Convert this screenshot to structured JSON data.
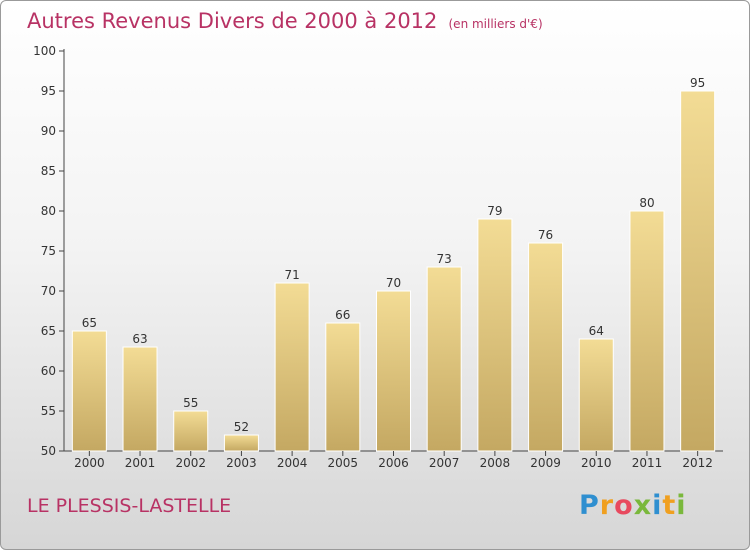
{
  "header": {
    "title": "Autres Revenus Divers de 2000 à 2012",
    "unit": "(en milliers d'€)"
  },
  "footer": {
    "commune": "LE PLESSIS-LASTELLE",
    "brand_letters": [
      "P",
      "r",
      "o",
      "x",
      "i",
      "t",
      "i"
    ],
    "brand_colors": [
      "#2f8fd0",
      "#f0a020",
      "#e84a5f",
      "#7ab83c",
      "#2f8fd0",
      "#f0a020",
      "#7ab83c"
    ]
  },
  "colors": {
    "title": "#b83264",
    "bar_light": "#f3dc95",
    "bar_dark": "#c4a862",
    "axis": "#444444"
  },
  "chart_data": {
    "type": "bar",
    "title": "Autres Revenus Divers de 2000 à 2012",
    "subtitle": "(en milliers d'€)",
    "xlabel": "",
    "ylabel": "",
    "categories": [
      "2000",
      "2001",
      "2002",
      "2003",
      "2004",
      "2005",
      "2006",
      "2007",
      "2008",
      "2009",
      "2010",
      "2011",
      "2012"
    ],
    "values": [
      65,
      63,
      55,
      52,
      71,
      66,
      70,
      73,
      79,
      76,
      64,
      80,
      95
    ],
    "ylim": [
      50,
      100
    ],
    "yticks": [
      50,
      55,
      60,
      65,
      70,
      75,
      80,
      85,
      90,
      95,
      100
    ],
    "grid": false,
    "legend": "none"
  }
}
